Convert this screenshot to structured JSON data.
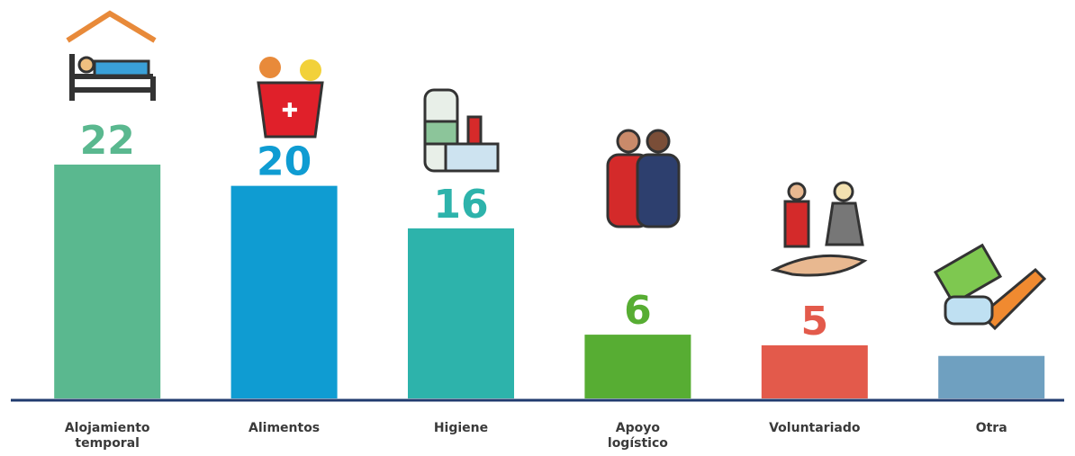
{
  "chart_data": {
    "type": "bar",
    "categories": [
      "Alojamiento temporal",
      "Alimentos",
      "Higiene",
      "Apoyo logístico",
      "Voluntariado",
      "Otra"
    ],
    "values": [
      22,
      20,
      16,
      6,
      5,
      4
    ],
    "value_labels": [
      "22",
      "20",
      "16",
      "6",
      "5",
      null
    ],
    "colors": [
      "#5ab88f",
      "#0f9cd2",
      "#2db3ab",
      "#57ad33",
      "#e35a4b",
      "#6fa0c0"
    ],
    "ylim": [
      0,
      22
    ]
  }
}
